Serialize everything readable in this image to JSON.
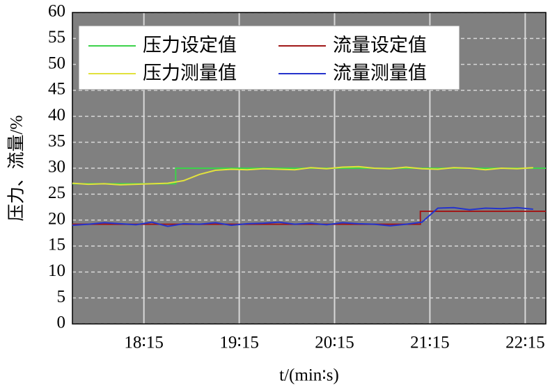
{
  "chart_data": {
    "type": "line",
    "xlabel": "t/(min∶s)",
    "ylabel": "压力、流量/%",
    "xlim": [
      1050,
      1348
    ],
    "ylim": [
      0,
      60
    ],
    "xticks": [
      {
        "value": 1095,
        "label": "18∶15"
      },
      {
        "value": 1155,
        "label": "19∶15"
      },
      {
        "value": 1215,
        "label": "20∶15"
      },
      {
        "value": 1275,
        "label": "21∶15"
      },
      {
        "value": 1335,
        "label": "22∶15"
      }
    ],
    "yticks": [
      0,
      5,
      10,
      15,
      20,
      25,
      30,
      35,
      40,
      45,
      50,
      55,
      60
    ],
    "grid": true,
    "legend": "upper left",
    "series": [
      {
        "name": "压力设定值",
        "color": "#3cd24a",
        "x": [
          1050,
          1115,
          1115,
          1348
        ],
        "values": [
          27,
          27,
          30,
          30
        ]
      },
      {
        "name": "流量设定值",
        "color": "#a01818",
        "x": [
          1050,
          1269,
          1269,
          1348
        ],
        "values": [
          19.2,
          19.2,
          21.7,
          21.7
        ]
      },
      {
        "name": "压力测量值",
        "color": "#e2e23c",
        "x": [
          1050,
          1060,
          1070,
          1080,
          1090,
          1100,
          1110,
          1120,
          1130,
          1140,
          1150,
          1160,
          1170,
          1180,
          1190,
          1200,
          1210,
          1220,
          1230,
          1240,
          1250,
          1260,
          1270,
          1280,
          1290,
          1300,
          1310,
          1320,
          1330,
          1340
        ],
        "values": [
          27.1,
          26.9,
          27,
          26.8,
          26.9,
          27,
          27.1,
          27.6,
          28.8,
          29.6,
          29.8,
          29.7,
          29.9,
          29.8,
          29.7,
          30.1,
          29.9,
          30.2,
          30.3,
          30,
          29.9,
          30.2,
          29.9,
          29.8,
          30.1,
          30,
          29.7,
          30,
          29.9,
          30.1
        ]
      },
      {
        "name": "流量测量值",
        "color": "#2433cc",
        "x": [
          1050,
          1060,
          1070,
          1080,
          1090,
          1100,
          1110,
          1120,
          1130,
          1140,
          1150,
          1160,
          1170,
          1180,
          1190,
          1200,
          1210,
          1220,
          1230,
          1240,
          1250,
          1260,
          1270,
          1280,
          1290,
          1300,
          1310,
          1320,
          1330,
          1340
        ],
        "values": [
          19,
          19.2,
          19.5,
          19.3,
          19.1,
          19.6,
          18.8,
          19.3,
          19.2,
          19.5,
          19,
          19.3,
          19.4,
          19.6,
          19.2,
          19.4,
          19.1,
          19.5,
          19.3,
          19.2,
          18.9,
          19.2,
          19.6,
          22.3,
          22.4,
          22,
          22.3,
          22.2,
          22.4,
          22.1
        ]
      }
    ]
  }
}
